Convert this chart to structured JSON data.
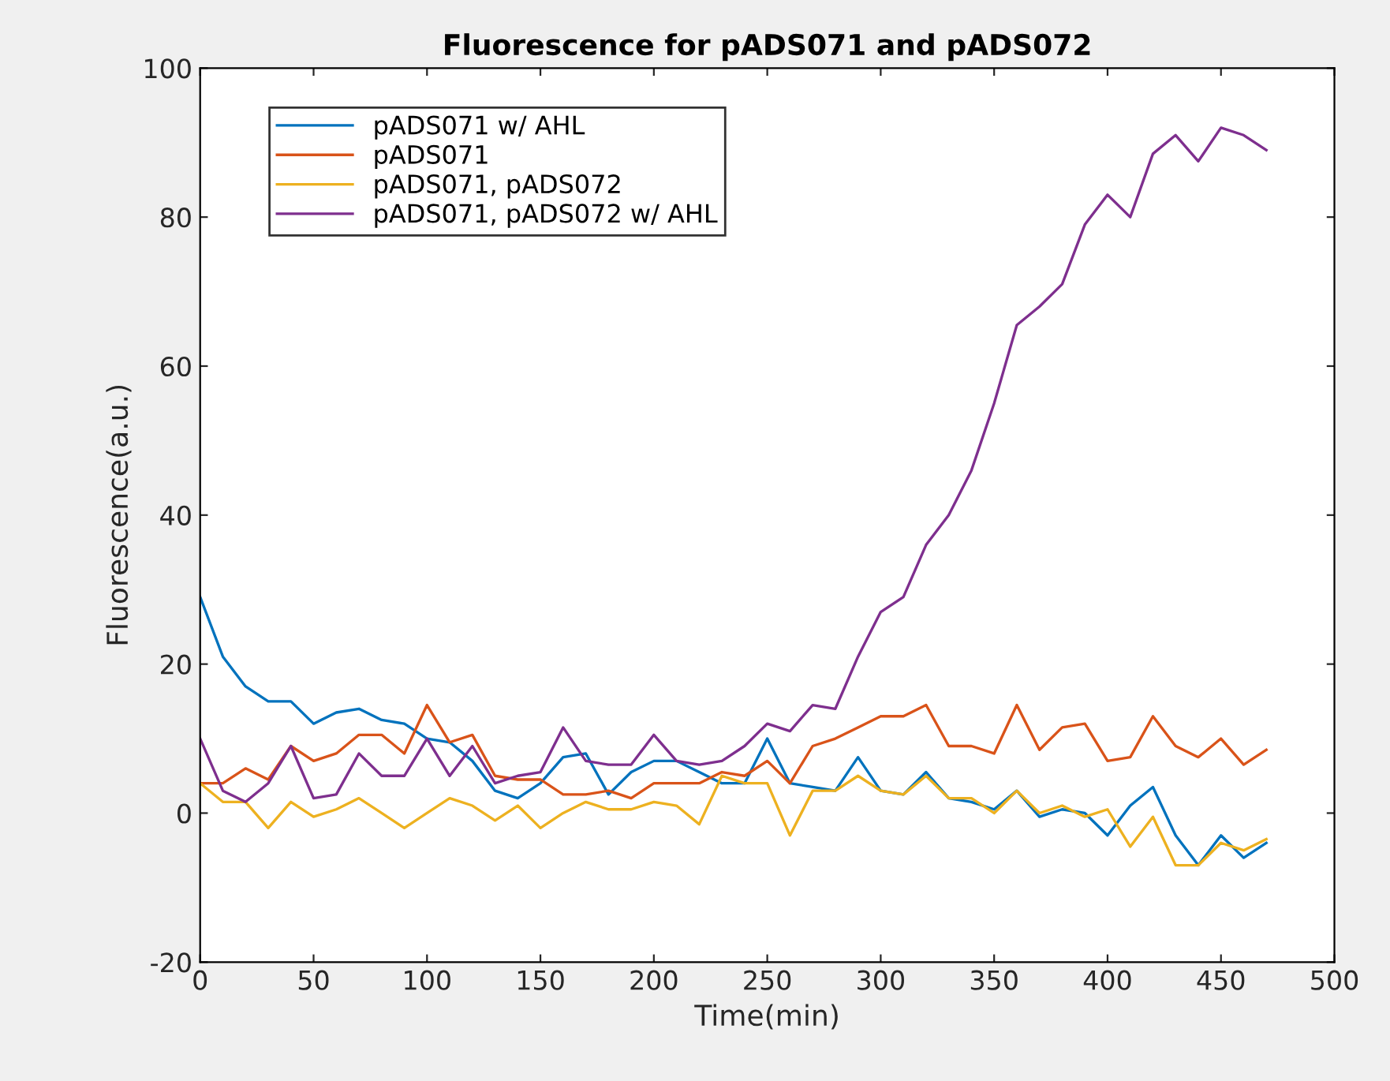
{
  "chart_data": {
    "type": "line",
    "title": "Fluorescence for pADS071 and pADS072",
    "xlabel": "Time(min)",
    "ylabel": "Fluorescence(a.u.)",
    "x": [
      0,
      10,
      20,
      30,
      40,
      50,
      60,
      70,
      80,
      90,
      100,
      110,
      120,
      130,
      140,
      150,
      160,
      170,
      180,
      190,
      200,
      210,
      220,
      230,
      240,
      250,
      260,
      270,
      280,
      290,
      300,
      310,
      320,
      330,
      340,
      350,
      360,
      370,
      380,
      390,
      400,
      410,
      420,
      430,
      440,
      450,
      460,
      470
    ],
    "series": [
      {
        "name": "pADS071 w/ AHL",
        "color": "#0072bd",
        "values": [
          29,
          21,
          17,
          15,
          15,
          12,
          13.5,
          14,
          12.5,
          12,
          10,
          9.5,
          7,
          3,
          2,
          4,
          7.5,
          8,
          2.5,
          5.5,
          7,
          7,
          5.5,
          4,
          4,
          10,
          4,
          3.5,
          3,
          7.5,
          3,
          2.5,
          5.5,
          2,
          1.5,
          0.5,
          3,
          -0.5,
          0.5,
          0,
          -3,
          1,
          3.5,
          -3,
          -7,
          -3,
          -6,
          -4
        ]
      },
      {
        "name": "pADS071",
        "color": "#d95319",
        "values": [
          4,
          4,
          6,
          4.5,
          9,
          7,
          8,
          10.5,
          10.5,
          8,
          14.5,
          9.5,
          10.5,
          5,
          4.5,
          4.5,
          2.5,
          2.5,
          3,
          2,
          4,
          4,
          4,
          5.5,
          5,
          7,
          4,
          9,
          10,
          11.5,
          13,
          13,
          14.5,
          9,
          9,
          8,
          14.5,
          8.5,
          11.5,
          12,
          7,
          7.5,
          13,
          9,
          7.5,
          10,
          6.5,
          8.5
        ]
      },
      {
        "name": "pADS071, pADS072",
        "color": "#edb120",
        "values": [
          4,
          1.5,
          1.5,
          -2,
          1.5,
          -0.5,
          0.5,
          2,
          0,
          -2,
          0,
          2,
          1,
          -1,
          1,
          -2,
          0,
          1.5,
          0.5,
          0.5,
          1.5,
          1,
          -1.5,
          5,
          4,
          4,
          -3,
          3,
          3,
          5,
          3,
          2.5,
          5,
          2,
          2,
          0,
          3,
          0,
          1,
          -0.5,
          0.5,
          -4.5,
          -0.5,
          -7,
          -7,
          -4,
          -5,
          -3.5
        ]
      },
      {
        "name": "pADS071, pADS072 w/ AHL",
        "color": "#7e2f8e",
        "values": [
          10,
          3,
          1.5,
          4,
          9,
          2,
          2.5,
          8,
          5,
          5,
          10,
          5,
          9,
          4,
          5,
          5.5,
          11.5,
          7,
          6.5,
          6.5,
          10.5,
          7,
          6.5,
          7,
          9,
          12,
          11,
          14.5,
          14,
          21,
          27,
          29,
          36,
          40,
          46,
          55,
          65.5,
          68,
          71,
          79,
          83,
          80,
          88.5,
          91,
          87.5,
          92,
          91,
          89
        ]
      }
    ],
    "xlim": [
      0,
      500
    ],
    "xticks": [
      0,
      50,
      100,
      150,
      200,
      250,
      300,
      350,
      400,
      450,
      500
    ],
    "ylim": [
      -20,
      100
    ],
    "yticks": [
      -20,
      0,
      20,
      40,
      60,
      80,
      100
    ],
    "grid": false,
    "legend": "top left",
    "marker": "none",
    "line_style": "solid"
  }
}
